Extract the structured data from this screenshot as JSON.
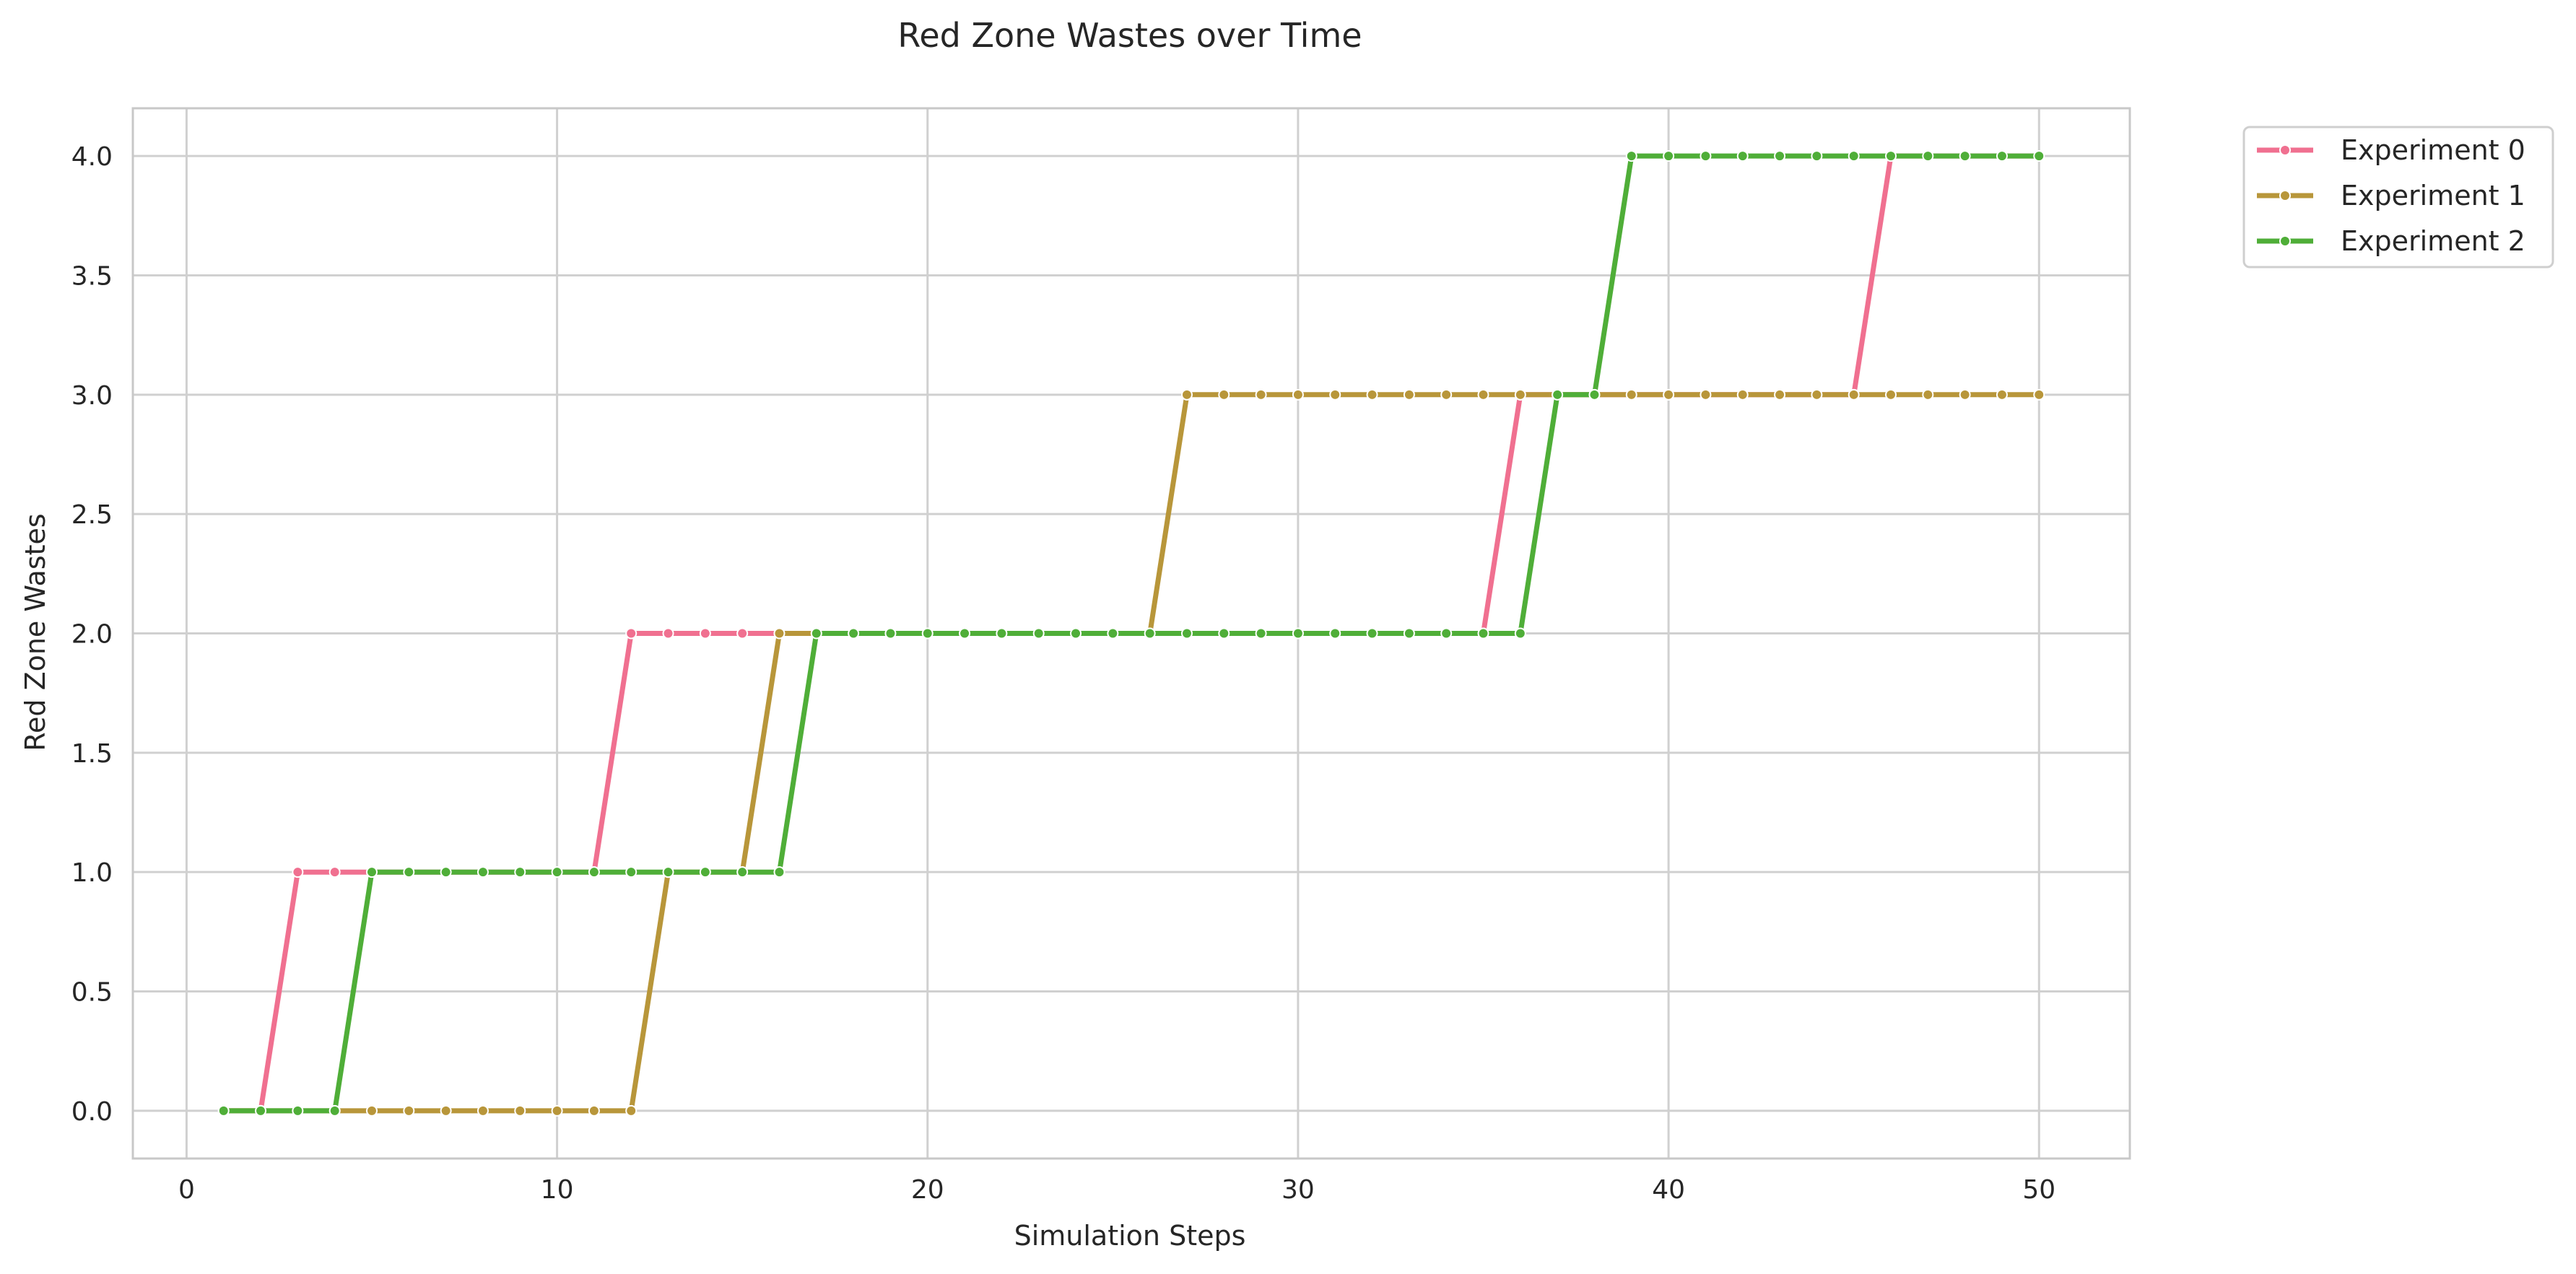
{
  "chart_data": {
    "type": "line",
    "title": "Red Zone Wastes over Time",
    "xlabel": "Simulation Steps",
    "ylabel": "Red Zone Wastes",
    "xlim": [
      -1.45,
      52.45
    ],
    "ylim": [
      -0.2,
      4.2
    ],
    "xticks": [
      0,
      10,
      20,
      30,
      40,
      50
    ],
    "yticks": [
      0.0,
      0.5,
      1.0,
      1.5,
      2.0,
      2.5,
      3.0,
      3.5,
      4.0
    ],
    "xtick_labels": [
      "0",
      "10",
      "20",
      "30",
      "40",
      "50"
    ],
    "ytick_labels": [
      "0.0",
      "0.5",
      "1.0",
      "1.5",
      "2.0",
      "2.5",
      "3.0",
      "3.5",
      "4.0"
    ],
    "grid": true,
    "legend_position": "outside-top-right",
    "x": [
      1,
      2,
      3,
      4,
      5,
      6,
      7,
      8,
      9,
      10,
      11,
      12,
      13,
      14,
      15,
      16,
      17,
      18,
      19,
      20,
      21,
      22,
      23,
      24,
      25,
      26,
      27,
      28,
      29,
      30,
      31,
      32,
      33,
      34,
      35,
      36,
      37,
      38,
      39,
      40,
      41,
      42,
      43,
      44,
      45,
      46,
      47,
      48,
      49,
      50
    ],
    "series": [
      {
        "name": "Experiment 0",
        "color": "#f07090",
        "values": [
          0,
          0,
          1,
          1,
          1,
          1,
          1,
          1,
          1,
          1,
          1,
          2,
          2,
          2,
          2,
          2,
          2,
          2,
          2,
          2,
          2,
          2,
          2,
          2,
          2,
          2,
          2,
          2,
          2,
          2,
          2,
          2,
          2,
          2,
          2,
          3,
          3,
          3,
          3,
          3,
          3,
          3,
          3,
          3,
          3,
          4,
          4,
          4,
          4,
          4
        ]
      },
      {
        "name": "Experiment 1",
        "color": "#b8963a",
        "values": [
          0,
          0,
          0,
          0,
          0,
          0,
          0,
          0,
          0,
          0,
          0,
          0,
          1,
          1,
          1,
          2,
          2,
          2,
          2,
          2,
          2,
          2,
          2,
          2,
          2,
          2,
          3,
          3,
          3,
          3,
          3,
          3,
          3,
          3,
          3,
          3,
          3,
          3,
          3,
          3,
          3,
          3,
          3,
          3,
          3,
          3,
          3,
          3,
          3,
          3
        ]
      },
      {
        "name": "Experiment 2",
        "color": "#4fae38",
        "values": [
          0,
          0,
          0,
          0,
          1,
          1,
          1,
          1,
          1,
          1,
          1,
          1,
          1,
          1,
          1,
          1,
          2,
          2,
          2,
          2,
          2,
          2,
          2,
          2,
          2,
          2,
          2,
          2,
          2,
          2,
          2,
          2,
          2,
          2,
          2,
          2,
          3,
          3,
          4,
          4,
          4,
          4,
          4,
          4,
          4,
          4,
          4,
          4,
          4,
          4
        ]
      }
    ]
  }
}
